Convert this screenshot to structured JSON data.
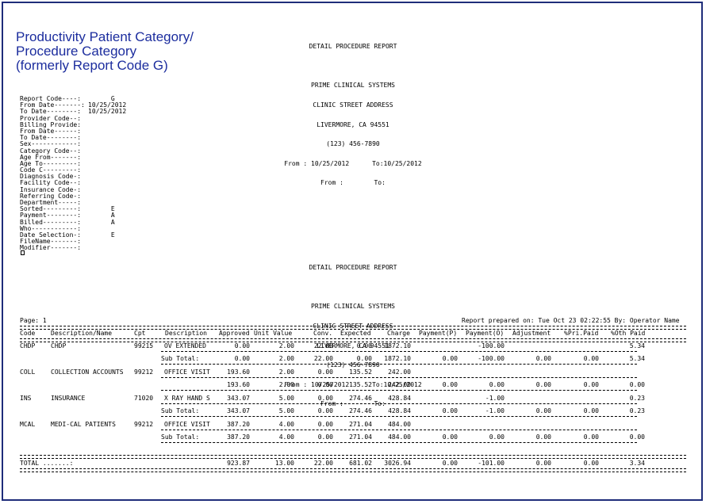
{
  "title_lines": [
    "Productivity Patient Category/",
    "Procedure Category",
    "(formerly Report Code G)"
  ],
  "report_header": {
    "name": "DETAIL PROCEDURE REPORT",
    "company": "PRIME CLINICAL SYSTEMS",
    "address1": "CLINIC STREET ADDRESS",
    "address2": "LIVERMORE, CA 94551",
    "phone": "(123) 456-7890",
    "range1": "From : 10/25/2012      To:10/25/2012",
    "range2": "From :        To:"
  },
  "params": [
    {
      "k": "Report Code----:",
      "v": "      G"
    },
    {
      "k": "From Date-------:",
      "v": "10/25/2012"
    },
    {
      "k": "To Date--------:",
      "v": "10/25/2012"
    },
    {
      "k": "Provider Code--:",
      "v": ""
    },
    {
      "k": "Billing Provide:",
      "v": ""
    },
    {
      "k": "From Date------:",
      "v": ""
    },
    {
      "k": "To Date--------:",
      "v": ""
    },
    {
      "k": "Sex------------:",
      "v": ""
    },
    {
      "k": "Category Code--:",
      "v": ""
    },
    {
      "k": "Age From-------:",
      "v": ""
    },
    {
      "k": "Age To---------:",
      "v": ""
    },
    {
      "k": "Code C---------:",
      "v": ""
    },
    {
      "k": "Diagnosis Code-:",
      "v": ""
    },
    {
      "k": "Facility Code--:",
      "v": ""
    },
    {
      "k": "Insurance Code-:",
      "v": ""
    },
    {
      "k": "Referring Code-:",
      "v": ""
    },
    {
      "k": "Department-----:",
      "v": ""
    },
    {
      "k": "Sorted---------:",
      "v": "      E"
    },
    {
      "k": "Payment--------:",
      "v": "      A"
    },
    {
      "k": "Billed---------:",
      "v": "      A"
    },
    {
      "k": "Who------------:",
      "v": ""
    },
    {
      "k": "Date Selection-:",
      "v": "      E"
    },
    {
      "k": "FileName-------:",
      "v": ""
    },
    {
      "k": "Modifier-------:",
      "v": ""
    }
  ],
  "page_label": "Page: 1",
  "prepared": "Report prepared on: Tue Oct 23 02:22:55 By: Operator Name",
  "columns": [
    "Code",
    "Description/Name",
    "Cpt",
    "Description",
    "Approved",
    "Unit Value",
    "Conv.",
    "Expected",
    "Charge",
    "Payment(P)",
    "Payment(O)",
    "Adjustment",
    "%Pri.Paid",
    "%Oth Paid"
  ],
  "groups": [
    {
      "detail": {
        "code": "CHDP",
        "name": "CHDP",
        "cpt": "99215",
        "desc": "OV EXTENDED",
        "approved": "0.00",
        "unit": "2.00",
        "conv": "22.00",
        "expected": "0.00",
        "charge": "1872.10",
        "pay_p": "",
        "pay_o": "-100.00",
        "adj": "",
        "pri": "",
        "oth": "5.34"
      },
      "subtotal": {
        "label": "Sub Total:",
        "approved": "0.00",
        "unit": "2.00",
        "conv": "22.00",
        "expected": "0.00",
        "charge": "1872.10",
        "pay_p": "0.00",
        "pay_o": "-100.00",
        "adj": "0.00",
        "pri": "0.00",
        "oth": "5.34"
      }
    },
    {
      "detail": {
        "code": "COLL",
        "name": "COLLECTION ACCOUNTS",
        "cpt": "99212",
        "desc": "OFFICE VISIT",
        "approved": "193.60",
        "unit": "2.00",
        "conv": "0.00",
        "expected": "135.52",
        "charge": "242.00",
        "pay_p": "",
        "pay_o": "",
        "adj": "",
        "pri": "",
        "oth": ""
      },
      "subtotal": {
        "label": "",
        "approved": "193.60",
        "unit": "2.00",
        "conv": "0.00",
        "expected": "135.52",
        "charge": "242.00",
        "pay_p": "0.00",
        "pay_o": "0.00",
        "adj": "0.00",
        "pri": "0.00",
        "oth": "0.00"
      }
    },
    {
      "detail": {
        "code": "INS",
        "name": "INSURANCE",
        "cpt": "71020",
        "desc": "X RAY HAND S",
        "approved": "343.07",
        "unit": "5.00",
        "conv": "0.00",
        "expected": "274.46",
        "charge": "428.84",
        "pay_p": "",
        "pay_o": "-1.00",
        "adj": "",
        "pri": "",
        "oth": "0.23"
      },
      "subtotal": {
        "label": "Sub Total:",
        "approved": "343.07",
        "unit": "5.00",
        "conv": "0.00",
        "expected": "274.46",
        "charge": "428.84",
        "pay_p": "0.00",
        "pay_o": "-1.00",
        "adj": "0.00",
        "pri": "0.00",
        "oth": "0.23"
      }
    },
    {
      "detail": {
        "code": "MCAL",
        "name": "MEDI-CAL PATIENTS",
        "cpt": "99212",
        "desc": "OFFICE VISIT",
        "approved": "387.20",
        "unit": "4.00",
        "conv": "0.00",
        "expected": "271.04",
        "charge": "484.00",
        "pay_p": "",
        "pay_o": "",
        "adj": "",
        "pri": "",
        "oth": ""
      },
      "subtotal": {
        "label": "Sub Total:",
        "approved": "387.20",
        "unit": "4.00",
        "conv": "0.00",
        "expected": "271.04",
        "charge": "484.00",
        "pay_p": "0.00",
        "pay_o": "0.00",
        "adj": "0.00",
        "pri": "0.00",
        "oth": "0.00"
      }
    }
  ],
  "total": {
    "label": "TOTAL .......:",
    "approved": "923.87",
    "unit": "13.00",
    "conv": "22.00",
    "expected": "681.02",
    "charge": "3026.94",
    "pay_p": "0.00",
    "pay_o": "-101.00",
    "adj": "0.00",
    "pri": "0.00",
    "oth": "3.34"
  }
}
